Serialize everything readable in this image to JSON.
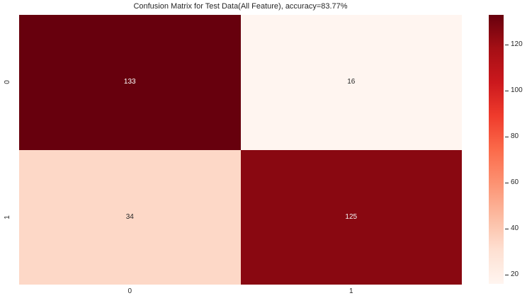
{
  "chart_data": {
    "type": "heatmap",
    "title": "Confusion Matrix for Test Data(All Feature), accuracy=83.77%",
    "accuracy_percent": 83.77,
    "x_tick_labels": [
      "0",
      "1"
    ],
    "y_tick_labels": [
      "0",
      "1"
    ],
    "categories_x": [
      "0",
      "1"
    ],
    "categories_y": [
      "0",
      "1"
    ],
    "matrix": [
      [
        133,
        16
      ],
      [
        34,
        125
      ]
    ],
    "vmin": 16,
    "vmax": 133,
    "colormap": "Reds",
    "grid": false,
    "legend_position": "right-colorbar",
    "colorbar_ticks": [
      20,
      40,
      60,
      80,
      100,
      120
    ],
    "cells": [
      {
        "row": 0,
        "col": 0,
        "value": "133",
        "bg": "#67000d",
        "fg": "#ffffff"
      },
      {
        "row": 0,
        "col": 1,
        "value": "16",
        "bg": "#fff5f0",
        "fg": "#262626"
      },
      {
        "row": 1,
        "col": 0,
        "value": "34",
        "bg": "#fdd8c7",
        "fg": "#262626"
      },
      {
        "row": 1,
        "col": 1,
        "value": "125",
        "bg": "#890811",
        "fg": "#f5f5f5"
      }
    ],
    "colormap_stops": [
      {
        "pos": 0.0,
        "color": "#fff5f0"
      },
      {
        "pos": 0.125,
        "color": "#fee0d2"
      },
      {
        "pos": 0.25,
        "color": "#fcbba1"
      },
      {
        "pos": 0.375,
        "color": "#fc9272"
      },
      {
        "pos": 0.5,
        "color": "#fb6a4a"
      },
      {
        "pos": 0.625,
        "color": "#ef3b2c"
      },
      {
        "pos": 0.75,
        "color": "#cb181d"
      },
      {
        "pos": 0.875,
        "color": "#a50f15"
      },
      {
        "pos": 1.0,
        "color": "#67000d"
      }
    ]
  }
}
